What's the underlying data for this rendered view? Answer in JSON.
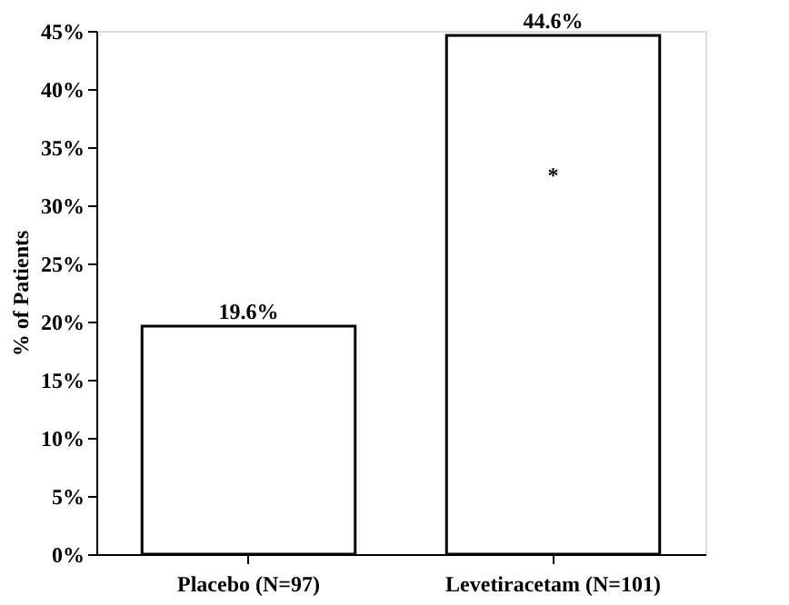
{
  "chart_data": {
    "type": "bar",
    "ylabel": "% of Patients",
    "categories": [
      "Placebo (N=97)",
      "Levetiracetam (N=101)"
    ],
    "values": [
      19.6,
      44.6
    ],
    "color": "#ffffff",
    "value_labels": [
      "19.6%",
      "44.6%"
    ],
    "annotations": [
      "*"
    ],
    "ylim": [
      0,
      45
    ],
    "yticks": [
      {
        "value": 0,
        "label": "0%"
      },
      {
        "value": 5,
        "label": "5%"
      },
      {
        "value": 10,
        "label": "10%"
      },
      {
        "value": 15,
        "label": "15%"
      },
      {
        "value": 20,
        "label": "20%"
      },
      {
        "value": 25,
        "label": "25%"
      },
      {
        "value": 30,
        "label": "30%"
      },
      {
        "value": 35,
        "label": "35%"
      },
      {
        "value": 40,
        "label": "40%"
      },
      {
        "value": 45,
        "label": "45%"
      }
    ],
    "grid": false
  }
}
